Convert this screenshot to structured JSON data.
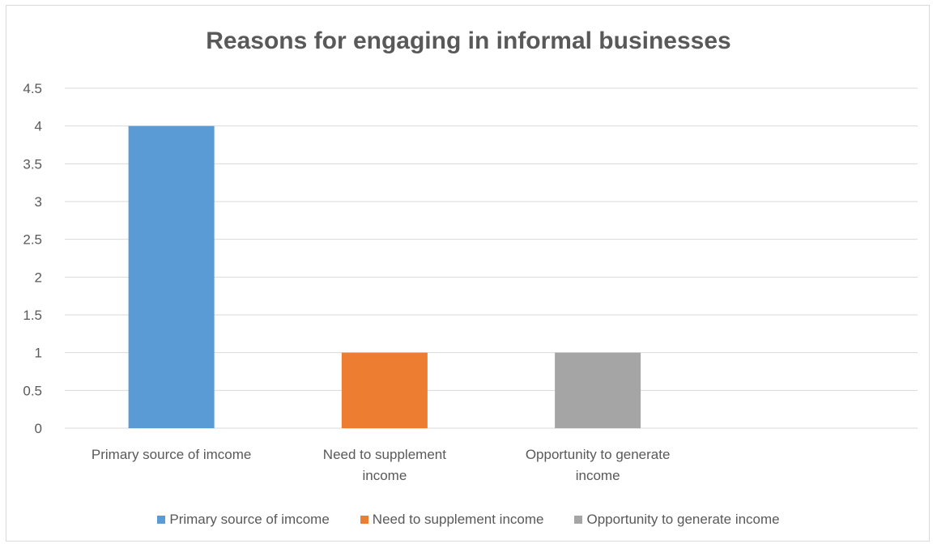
{
  "chart_data": {
    "type": "bar",
    "title": "Reasons for engaging in informal businesses",
    "categories": [
      "Primary source of imcome",
      "Need to supplement income",
      "Opportunity to generate income"
    ],
    "category_label_lines": [
      [
        "Primary source of imcome"
      ],
      [
        "Need to supplement",
        "income"
      ],
      [
        "Opportunity to generate",
        "income"
      ]
    ],
    "series": [
      {
        "name": "Primary source of imcome",
        "values": [
          4,
          null,
          null
        ],
        "color": "#5b9bd5"
      },
      {
        "name": "Need to supplement income",
        "values": [
          null,
          1,
          null
        ],
        "color": "#ed7d31"
      },
      {
        "name": "Opportunity to generate income",
        "values": [
          null,
          null,
          1
        ],
        "color": "#a5a5a5"
      }
    ],
    "values": [
      4,
      1,
      1
    ],
    "y_ticks": [
      "0",
      "0.5",
      "1",
      "1.5",
      "2",
      "2.5",
      "3",
      "3.5",
      "4",
      "4.5"
    ],
    "ylim": [
      0,
      4.5
    ],
    "xlabel": "",
    "ylabel": "",
    "grid": true,
    "legend_position": "bottom"
  }
}
